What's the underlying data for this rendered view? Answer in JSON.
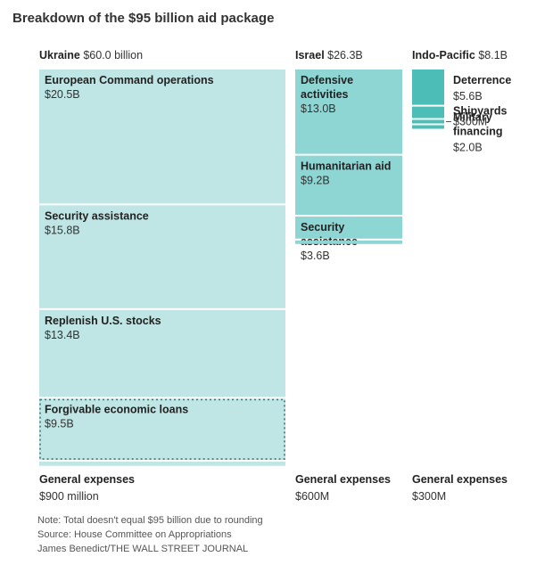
{
  "title": "Breakdown of the $95 billion aid package",
  "colors": {
    "ukraine": "#bfe5e5",
    "israel": "#8dd6d4",
    "indo_pacific": "#4cbdb7",
    "border": "#ffffff",
    "dotted": "#3d7a78"
  },
  "chart_data": {
    "type": "treemap",
    "title": "Breakdown of the $95 billion aid package",
    "groups": [
      {
        "key": "ukraine",
        "name": "Ukraine",
        "total_label": "$60.0 billion",
        "total": 60.0,
        "items": [
          {
            "name": "European Command operations",
            "value": 20.5,
            "value_label": "$20.5B"
          },
          {
            "name": "Security assistance",
            "value": 15.8,
            "value_label": "$15.8B"
          },
          {
            "name": "Replenish U.S. stocks",
            "value": 13.4,
            "value_label": "$13.4B"
          },
          {
            "name": "Forgivable economic loans",
            "value": 9.5,
            "value_label": "$9.5B",
            "dotted": true
          },
          {
            "name": "General expenses",
            "value": 0.9,
            "value_label": "$900 million",
            "label_below": true
          }
        ]
      },
      {
        "key": "israel",
        "name": "Israel",
        "total_label": "$26.3B",
        "total": 26.3,
        "items": [
          {
            "name": "Defensive activities",
            "name_lines": [
              "Defensive",
              "activities"
            ],
            "value": 13.0,
            "value_label": "$13.0B"
          },
          {
            "name": "Humanitarian aid",
            "value": 9.2,
            "value_label": "$9.2B"
          },
          {
            "name": "Security assistance",
            "name_lines": [
              "Security",
              "assistance"
            ],
            "value": 3.6,
            "value_label": "$3.6B"
          },
          {
            "name": "General expenses",
            "value": 0.6,
            "value_label": "$600M",
            "label_below": true
          }
        ]
      },
      {
        "key": "indo_pacific",
        "name": "Indo-Pacific",
        "total_label": "$8.1B",
        "total": 8.1,
        "items": [
          {
            "name": "Deterrence",
            "value": 5.6,
            "value_label": "$5.6B"
          },
          {
            "name": "Military financing",
            "name_lines": [
              "Military",
              "financing"
            ],
            "value": 2.0,
            "value_label": "$2.0B"
          },
          {
            "name": "Shipyards",
            "value": 0.3,
            "value_label": "$300M",
            "leader": true
          },
          {
            "name": "General expenses",
            "value": 0.3,
            "value_label": "$300M",
            "label_below": true
          }
        ]
      }
    ]
  },
  "footer": {
    "note": "Note: Total doesn't equal $95 billion due to rounding",
    "source": "Source: House Committee on Appropriations",
    "credit": "James Benedict/THE WALL STREET JOURNAL"
  }
}
